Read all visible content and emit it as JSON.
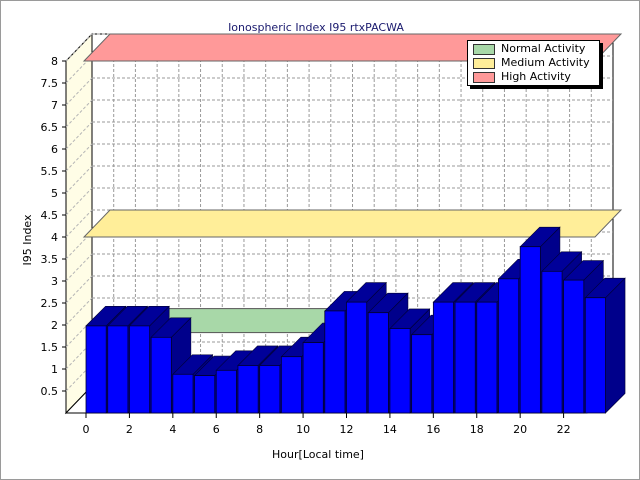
{
  "chart_data": {
    "type": "bar",
    "title": "Ionospheric Index I95 rtxPACWA",
    "xlabel": "Hour[Local time]",
    "ylabel": "I95 Index",
    "ylim": [
      0,
      8
    ],
    "y_ticks": [
      "0.5",
      "1",
      "1.5",
      "2",
      "2.5",
      "3",
      "3.5",
      "4",
      "4.5",
      "5",
      "5.5",
      "6",
      "6.5",
      "7",
      "7.5",
      "8"
    ],
    "x_ticks": [
      "0",
      "2",
      "4",
      "6",
      "8",
      "10",
      "12",
      "14",
      "16",
      "18",
      "20",
      "22"
    ],
    "x": [
      0,
      1,
      2,
      3,
      4,
      5,
      6,
      7,
      8,
      9,
      10,
      11,
      12,
      13,
      14,
      15,
      16,
      17,
      18,
      19,
      20,
      21,
      22,
      23
    ],
    "series": [
      {
        "color": "#0000ff",
        "values": [
          1.98,
          1.98,
          1.98,
          1.72,
          0.88,
          0.85,
          0.97,
          1.08,
          1.08,
          1.28,
          1.6,
          2.32,
          2.52,
          2.28,
          1.92,
          1.78,
          2.52,
          2.52,
          2.52,
          3.05,
          3.78,
          3.22,
          3.02,
          2.62
        ]
      }
    ],
    "bands": [
      {
        "name": "Normal Activity",
        "y": 2.25,
        "color": "#a8d8a8"
      },
      {
        "name": "Medium Activity",
        "y": 4.0,
        "color": "#ffee99"
      },
      {
        "name": "High Activity",
        "y": 8.0,
        "color": "#ff9999"
      }
    ],
    "grid": true,
    "legend_position": "top-right"
  }
}
